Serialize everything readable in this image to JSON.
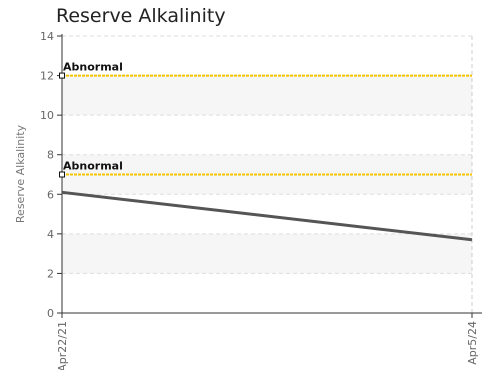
{
  "chart_data": {
    "type": "line",
    "title": "Reserve Alkalinity",
    "xlabel": "",
    "ylabel": "Reserve Alkalinity",
    "ylim": [
      0,
      14
    ],
    "yticks": [
      0,
      2,
      4,
      6,
      8,
      10,
      12,
      14
    ],
    "x": [
      "Apr22/21",
      "Apr5/24"
    ],
    "series": [
      {
        "values": [
          6.1,
          3.7
        ],
        "color": "#555555"
      }
    ],
    "reference_lines": [
      {
        "value": 12,
        "label": "Abnormal",
        "color": "#f5c400"
      },
      {
        "value": 7,
        "label": "Abnormal",
        "color": "#f5c400"
      }
    ],
    "grid": true,
    "legend": "none"
  }
}
